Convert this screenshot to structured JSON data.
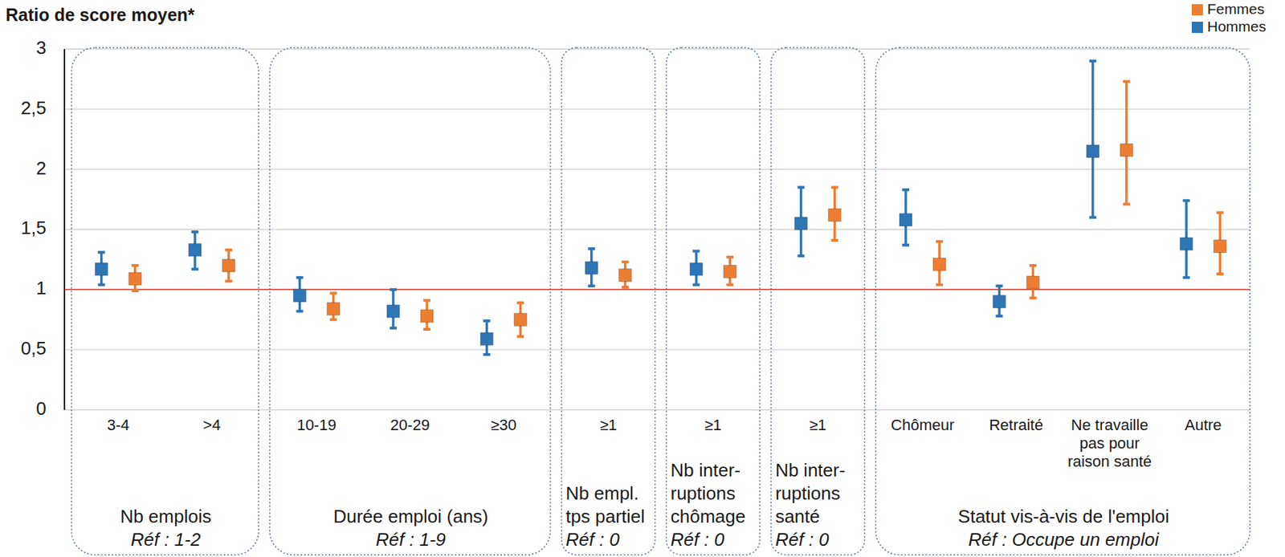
{
  "chart_data": {
    "type": "errorbar",
    "title": "Ratio de score moyen*",
    "groups": [
      {
        "name": "Nb emplois",
        "reference": "Réf : 1-2",
        "categories": [
          "3-4",
          ">4"
        ]
      },
      {
        "name": "Durée emploi (ans)",
        "reference": "Réf : 1-9",
        "categories": [
          "10-19",
          "20-29",
          "≥30"
        ]
      },
      {
        "name": "Nb empl. tps partiel",
        "reference": "Réf : 0",
        "categories": [
          "≥1"
        ]
      },
      {
        "name": "Nb inter-ruptions chômage",
        "reference": "Réf : 0",
        "categories": [
          "≥1"
        ]
      },
      {
        "name": "Nb inter-ruptions santé",
        "reference": "Réf : 0",
        "categories": [
          "≥1"
        ]
      },
      {
        "name": "Statut vis-à-vis de l'emploi",
        "reference": "Réf : Occupe un emploi",
        "categories": [
          "Chômeur",
          "Retraité",
          "Ne travaille pas pour raison santé",
          "Autre"
        ]
      }
    ],
    "series": [
      {
        "name": "Hommes",
        "color": "#2e75b6",
        "marker": "square",
        "values": [
          1.17,
          1.33,
          0.95,
          0.82,
          0.59,
          1.18,
          1.17,
          1.55,
          1.58,
          0.9,
          2.15,
          1.38
        ],
        "lower": [
          1.04,
          1.17,
          0.82,
          0.68,
          0.46,
          1.03,
          1.04,
          1.28,
          1.37,
          0.78,
          1.6,
          1.1
        ],
        "upper": [
          1.31,
          1.48,
          1.1,
          1.0,
          0.74,
          1.34,
          1.32,
          1.85,
          1.83,
          1.03,
          2.9,
          1.74
        ]
      },
      {
        "name": "Femmes",
        "color": "#ed7d31",
        "marker": "square",
        "values": [
          1.09,
          1.2,
          0.84,
          0.78,
          0.75,
          1.12,
          1.15,
          1.62,
          1.21,
          1.06,
          2.16,
          1.36
        ],
        "lower": [
          0.99,
          1.07,
          0.75,
          0.67,
          0.61,
          1.02,
          1.04,
          1.41,
          1.04,
          0.93,
          1.71,
          1.13
        ],
        "upper": [
          1.2,
          1.33,
          0.97,
          0.91,
          0.89,
          1.23,
          1.27,
          1.85,
          1.4,
          1.2,
          2.73,
          1.64
        ]
      }
    ],
    "reference_line": 1,
    "ylim": [
      0,
      3
    ],
    "yticks": [
      0,
      {
        "value": 0.5,
        "label": "0,5"
      },
      1,
      {
        "value": 1.5,
        "label": "1,5"
      },
      2,
      {
        "value": 2.5,
        "label": "2,5"
      },
      3
    ],
    "grid": true,
    "legend": "top-right"
  }
}
